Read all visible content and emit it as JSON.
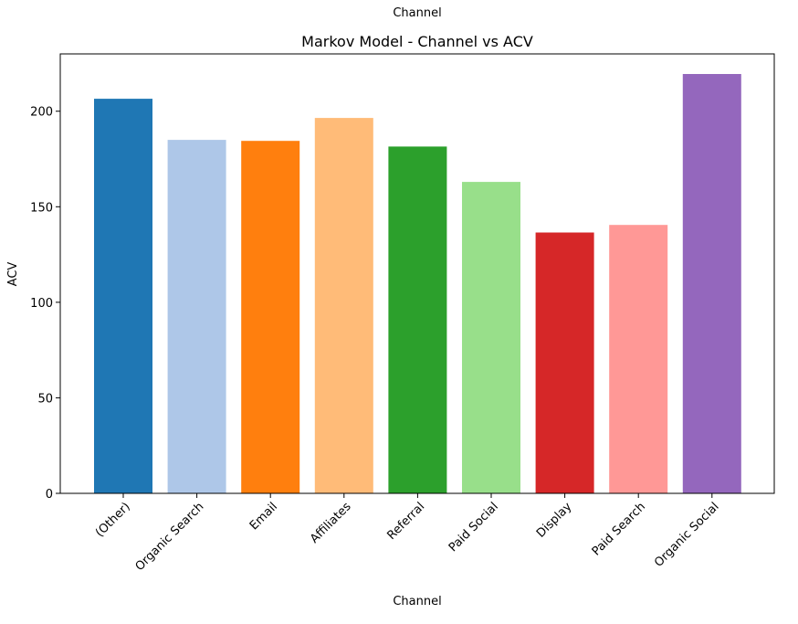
{
  "figure": {
    "suptitle": "Channel"
  },
  "chart_data": {
    "type": "bar",
    "title": "Markov Model - Channel vs ACV",
    "xlabel": "Channel",
    "ylabel": "ACV",
    "categories": [
      "(Other)",
      "Organic Search",
      "Email",
      "Affiliates",
      "Referral",
      "Paid Social",
      "Display",
      "Paid Search",
      "Organic Social"
    ],
    "values": [
      206.5,
      185,
      184.5,
      196.5,
      181.5,
      163,
      136.5,
      140.5,
      219.5
    ],
    "colors": [
      "#1f77b4",
      "#aec7e8",
      "#ff7f0e",
      "#ffbb78",
      "#2ca02c",
      "#98df8a",
      "#d62728",
      "#ff9896",
      "#9467bd"
    ],
    "ylim": [
      0,
      230
    ],
    "yticks": [
      0,
      50,
      100,
      150,
      200
    ],
    "grid": false,
    "legend": "none"
  }
}
